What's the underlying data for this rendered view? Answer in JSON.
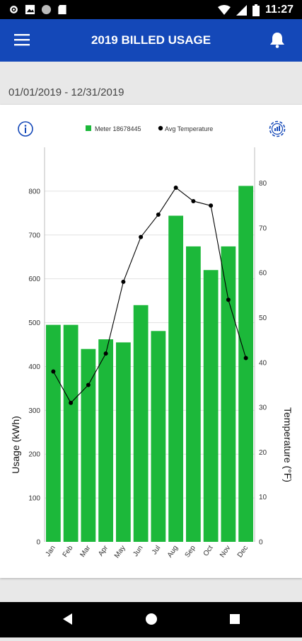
{
  "status_bar": {
    "time": "11:27"
  },
  "app_bar": {
    "title": "2019 BILLED USAGE"
  },
  "date_range": "01/01/2019 - 12/31/2019",
  "colors": {
    "app_bar": "#1448b8",
    "bar": "#1cb83a",
    "line": "#000000"
  },
  "icons": [
    "menu-icon",
    "bell-icon",
    "info-icon",
    "settings-icon",
    "back-icon",
    "home-icon",
    "recents-icon"
  ],
  "chart_data": {
    "type": "bar",
    "categories": [
      "Jan",
      "Feb",
      "Mar",
      "Apr",
      "May",
      "Jun",
      "Jul",
      "Aug",
      "Sep",
      "Oct",
      "Nov",
      "Dec"
    ],
    "series": [
      {
        "name": "Meter 18678445",
        "type": "bar",
        "axis": "left",
        "values": [
          495,
          495,
          440,
          462,
          455,
          540,
          481,
          744,
          674,
          620,
          674,
          812
        ]
      },
      {
        "name": "Avg Temperature",
        "type": "line",
        "axis": "right",
        "values": [
          38,
          31,
          35,
          42,
          58,
          68,
          73,
          79,
          76,
          75,
          54,
          41
        ]
      }
    ],
    "ylabel": "Usage (kWh)",
    "y2label": "Temperature (°F)",
    "ylim": [
      0,
      900
    ],
    "y2lim": [
      0,
      88
    ],
    "yticks": [
      "0",
      "100",
      "200",
      "300",
      "400",
      "500",
      "600",
      "700",
      "800"
    ],
    "y2ticks": [
      "0",
      "10",
      "20",
      "30",
      "40",
      "50",
      "60",
      "70",
      "80"
    ],
    "grid": true,
    "legend": "top-center"
  }
}
